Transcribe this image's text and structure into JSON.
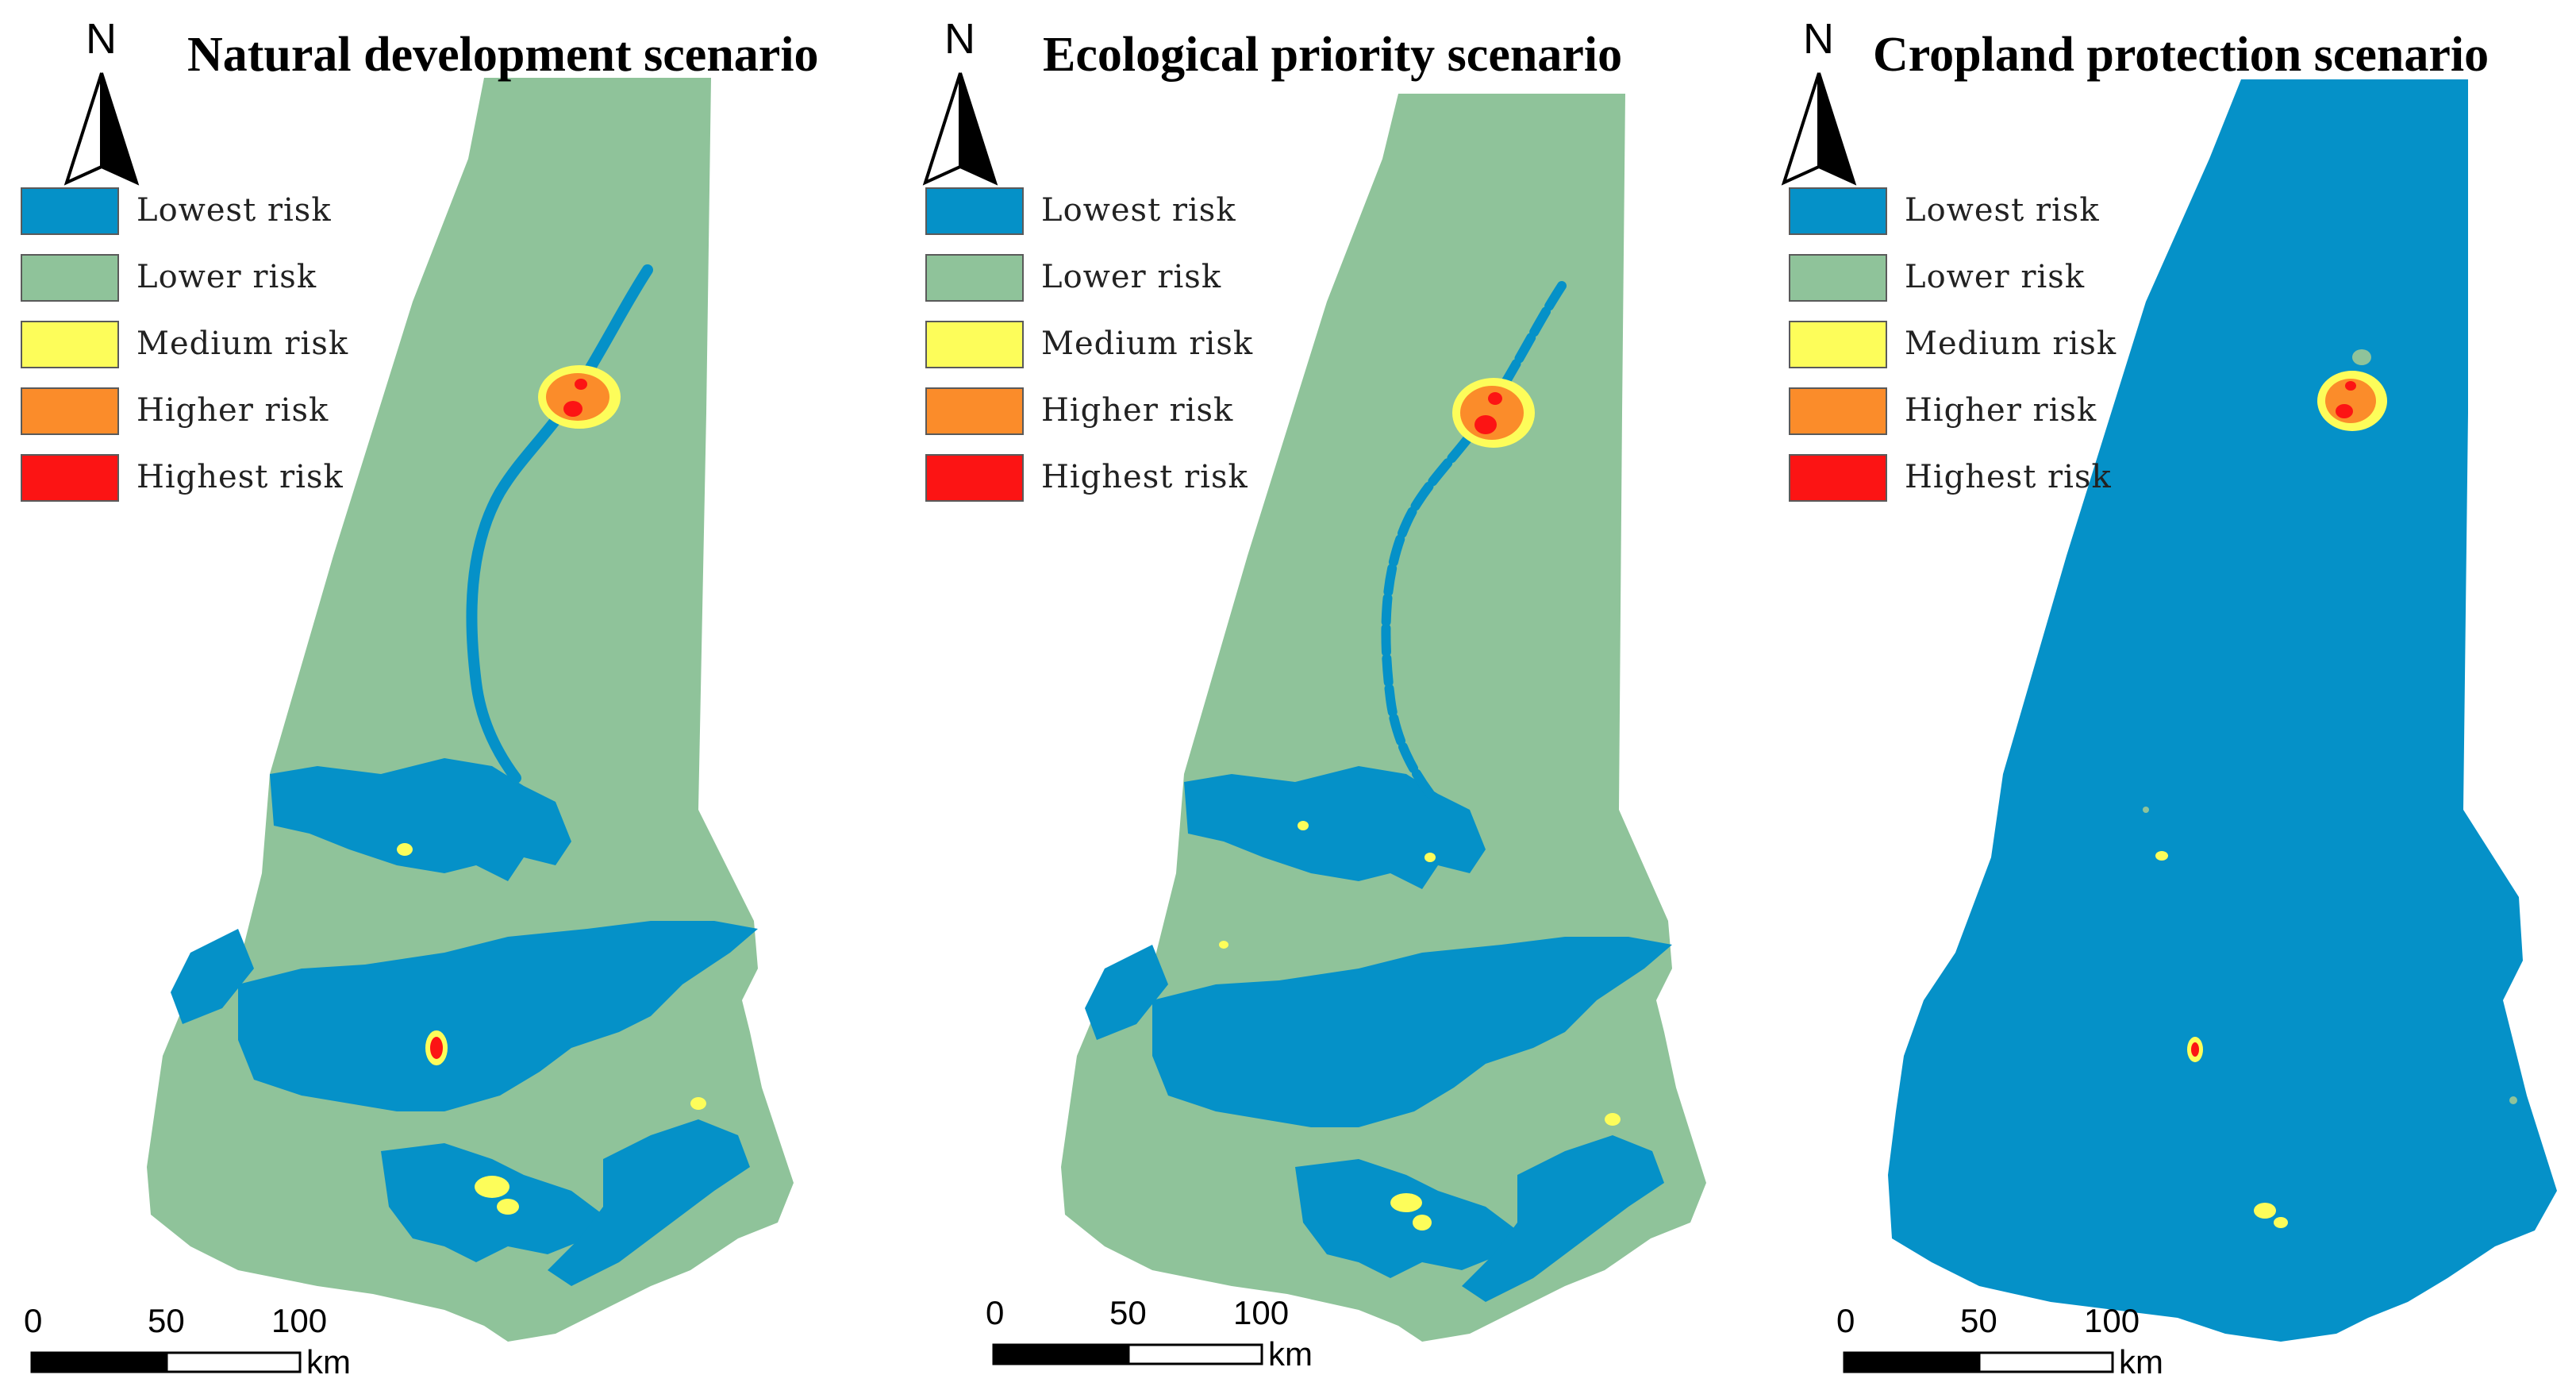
{
  "legend": [
    {
      "label": "Lowest risk",
      "color": "#0591c8"
    },
    {
      "label": "Lower risk",
      "color": "#8fc39a"
    },
    {
      "label": "Medium risk",
      "color": "#fdfd5a"
    },
    {
      "label": "Higher risk",
      "color": "#fb8c2a"
    },
    {
      "label": "Highest risk",
      "color": "#fc1414"
    }
  ],
  "north_label": "N",
  "scale_bar": {
    "ticks": [
      "0",
      "50",
      "100"
    ],
    "unit": "km"
  },
  "panels": [
    {
      "title": "Natural development scenario",
      "base_risk": "Lower risk"
    },
    {
      "title": "Ecological priority scenario",
      "base_risk": "Lower risk"
    },
    {
      "title": "Cropland protection scenario",
      "base_risk": "Lowest risk"
    }
  ]
}
